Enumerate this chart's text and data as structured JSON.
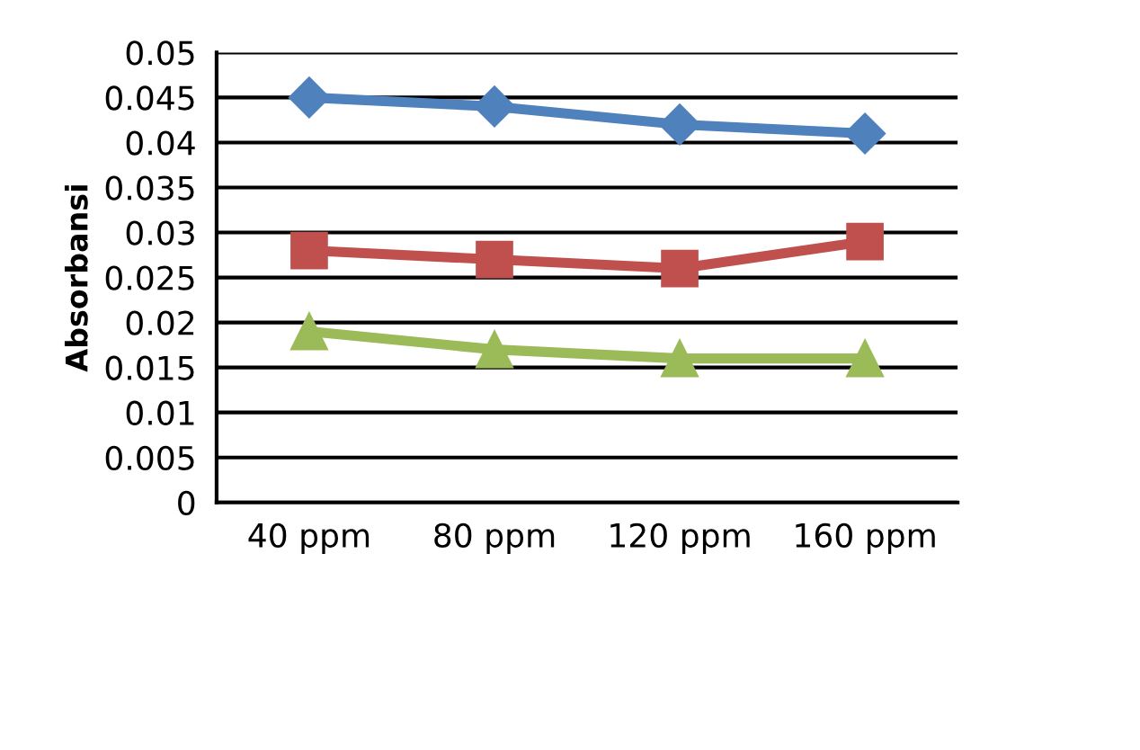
{
  "chart_data": {
    "type": "line",
    "ylabel": "Absorbansi",
    "categories": [
      "40 ppm",
      "80 ppm",
      "120 ppm",
      "160 ppm"
    ],
    "series": [
      {
        "color": "#4f81bd",
        "marker": "diamond",
        "values": [
          0.045,
          0.044,
          0.042,
          0.041
        ]
      },
      {
        "color": "#c0504d",
        "marker": "square",
        "values": [
          0.028,
          0.027,
          0.026,
          0.029
        ]
      },
      {
        "color": "#9bbb59",
        "marker": "triangle",
        "values": [
          0.019,
          0.017,
          0.016,
          0.016
        ]
      }
    ],
    "ylim": [
      0,
      0.05
    ],
    "yticks": [
      0,
      0.005,
      0.01,
      0.015,
      0.02,
      0.025,
      0.03,
      0.035,
      0.04,
      0.045,
      0.05
    ],
    "grid": "y",
    "line_style": "solid"
  }
}
